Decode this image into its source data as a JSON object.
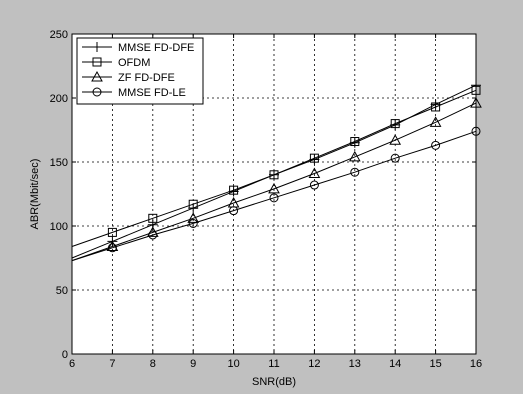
{
  "chart_data": {
    "type": "line",
    "xlabel": "SNR(dB)",
    "ylabel": "ABR(Mbit/sec)",
    "xlim": [
      6,
      16
    ],
    "ylim": [
      0,
      250
    ],
    "xticks": [
      6,
      7,
      8,
      9,
      10,
      11,
      12,
      13,
      14,
      15,
      16
    ],
    "yticks": [
      0,
      50,
      100,
      150,
      200,
      250
    ],
    "grid": true,
    "legend_position": "top-left",
    "x": [
      6,
      7,
      8,
      9,
      10,
      11,
      12,
      13,
      14,
      15,
      16
    ],
    "marker_x": [
      7,
      8,
      9,
      10,
      11,
      12,
      13,
      14,
      15,
      16
    ],
    "series": [
      {
        "name": "MMSE FD-DFE",
        "marker": "plus",
        "values": [
          75,
          88,
          101,
          114,
          127,
          140,
          152,
          165,
          179,
          195,
          210
        ]
      },
      {
        "name": "OFDM",
        "marker": "square",
        "values": [
          84,
          95,
          106,
          117,
          128,
          140,
          153,
          166,
          180,
          193,
          206
        ]
      },
      {
        "name": "ZF FD-DFE",
        "marker": "triangle",
        "values": [
          73,
          84,
          95,
          106,
          118,
          129,
          141,
          154,
          167,
          181,
          196
        ]
      },
      {
        "name": "MMSE FD-LE",
        "marker": "circle",
        "values": [
          73,
          83,
          93,
          102,
          112,
          122,
          132,
          142,
          153,
          163,
          174
        ]
      }
    ]
  }
}
